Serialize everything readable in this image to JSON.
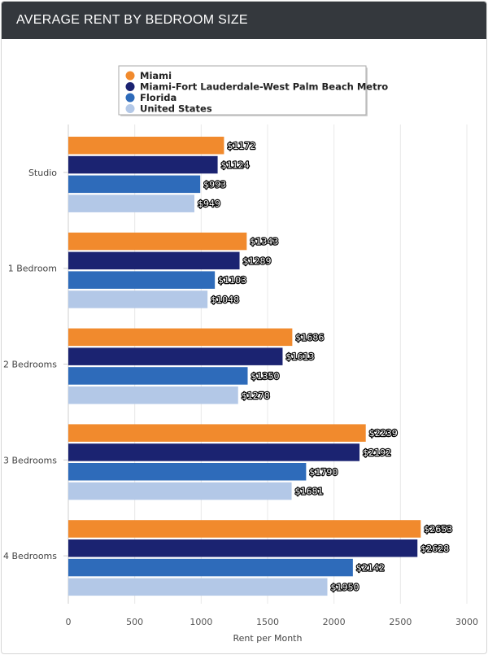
{
  "chart_data": {
    "type": "bar",
    "orientation": "horizontal",
    "title": "AVERAGE RENT BY BEDROOM SIZE",
    "xlabel": "Rent per Month",
    "ylabel": "",
    "xlim": [
      0,
      3000
    ],
    "xticks": [
      0,
      500,
      1000,
      1500,
      2000,
      2500,
      3000
    ],
    "grid": "vertical",
    "legend_position": "top",
    "value_prefix": "$",
    "categories": [
      "Studio",
      "1 Bedroom",
      "2 Bedrooms",
      "3 Bedrooms",
      "4 Bedrooms"
    ],
    "series": [
      {
        "name": "Miami",
        "color": "#f18a2d",
        "values": [
          1172,
          1343,
          1686,
          2239,
          2653
        ]
      },
      {
        "name": "Miami-Fort Lauderdale-West Palm Beach Metro",
        "color": "#1b2371",
        "values": [
          1124,
          1289,
          1613,
          2192,
          2628
        ]
      },
      {
        "name": "Florida",
        "color": "#2e6bba",
        "values": [
          993,
          1103,
          1350,
          1790,
          2142
        ]
      },
      {
        "name": "United States",
        "color": "#b3c8e7",
        "values": [
          949,
          1048,
          1278,
          1681,
          1950
        ]
      }
    ]
  }
}
